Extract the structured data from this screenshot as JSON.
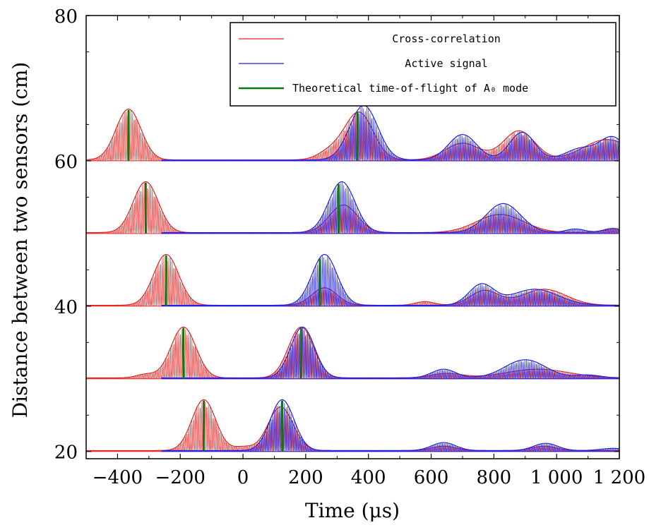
{
  "chart_data": {
    "type": "line",
    "title": "",
    "xlabel": "Time (μs)",
    "ylabel": "Distance between two sensors (cm)",
    "xlim": [
      -500,
      1200
    ],
    "ylim": [
      19,
      80
    ],
    "xticks": [
      -400,
      -200,
      0,
      200,
      400,
      600,
      800,
      1000,
      1200
    ],
    "xtick_labels": [
      "−400",
      "−200",
      "0",
      "200",
      "400",
      "600",
      "800",
      "1 000",
      "1 200"
    ],
    "yticks": [
      20,
      40,
      60,
      80
    ],
    "ytick_labels": [
      "20",
      "40",
      "60",
      "80"
    ],
    "grid": false,
    "legend_position": "top-right",
    "colors": {
      "cross": "#e8211e",
      "active": "#1f1fe6",
      "theory": "#0a7a0a"
    },
    "series": [
      {
        "name": "Cross-correlation",
        "style": "oscillating-envelope"
      },
      {
        "name": "Active signal",
        "style": "oscillating-envelope"
      },
      {
        "name": "Theoretical time-of-flight of A₀ mode",
        "style": "vertical-markers"
      }
    ],
    "traces": [
      {
        "distance": 20,
        "theory_tof": [
          -125,
          125
        ],
        "cross_peaks": [
          {
            "t": -125,
            "a": 7,
            "w": 38
          },
          {
            "t": 0,
            "a": 0.5,
            "w": 30
          },
          {
            "t": 120,
            "a": 6,
            "w": 40
          },
          {
            "t": 640,
            "a": 0.6,
            "w": 40
          },
          {
            "t": 960,
            "a": 0.6,
            "w": 40
          }
        ],
        "active_peaks": [
          {
            "t": 125,
            "a": 7,
            "w": 38
          },
          {
            "t": 640,
            "a": 1.1,
            "w": 38
          },
          {
            "t": 965,
            "a": 1.0,
            "w": 38
          },
          {
            "t": 1180,
            "a": 0.3,
            "w": 40
          }
        ]
      },
      {
        "distance": 30,
        "theory_tof": [
          -190,
          185
        ],
        "cross_peaks": [
          {
            "t": -190,
            "a": 7,
            "w": 40
          },
          {
            "t": -310,
            "a": 0.5,
            "w": 30
          },
          {
            "t": 185,
            "a": 7,
            "w": 40
          },
          {
            "t": 650,
            "a": 0.6,
            "w": 50
          },
          {
            "t": 940,
            "a": 1.2,
            "w": 100
          }
        ],
        "active_peaks": [
          {
            "t": 190,
            "a": 7,
            "w": 38
          },
          {
            "t": 640,
            "a": 1.2,
            "w": 38
          },
          {
            "t": 900,
            "a": 2.5,
            "w": 65
          },
          {
            "t": 1100,
            "a": 0.4,
            "w": 40
          }
        ]
      },
      {
        "distance": 40,
        "theory_tof": [
          -245,
          245
        ],
        "cross_peaks": [
          {
            "t": -245,
            "a": 7,
            "w": 40
          },
          {
            "t": 260,
            "a": 2.4,
            "w": 40
          },
          {
            "t": 580,
            "a": 0.5,
            "w": 30
          },
          {
            "t": 770,
            "a": 2,
            "w": 45
          },
          {
            "t": 960,
            "a": 2.2,
            "w": 70
          }
        ],
        "active_peaks": [
          {
            "t": 260,
            "a": 7,
            "w": 40
          },
          {
            "t": 760,
            "a": 2.8,
            "w": 40
          },
          {
            "t": 930,
            "a": 2.2,
            "w": 75
          }
        ]
      },
      {
        "distance": 50,
        "theory_tof": [
          -310,
          305
        ],
        "cross_peaks": [
          {
            "t": -310,
            "a": 7,
            "w": 40
          },
          {
            "t": 320,
            "a": 3.8,
            "w": 45
          },
          {
            "t": 820,
            "a": 2.5,
            "w": 75
          },
          {
            "t": 1180,
            "a": 0.4,
            "w": 40
          }
        ],
        "active_peaks": [
          {
            "t": 315,
            "a": 7,
            "w": 42
          },
          {
            "t": 830,
            "a": 4,
            "w": 55
          },
          {
            "t": 1060,
            "a": 0.5,
            "w": 30
          },
          {
            "t": 1180,
            "a": 0.6,
            "w": 30
          }
        ]
      },
      {
        "distance": 60,
        "theory_tof": [
          -365,
          365
        ],
        "cross_peaks": [
          {
            "t": -365,
            "a": 7,
            "w": 40
          },
          {
            "t": 370,
            "a": 6.5,
            "w": 45
          },
          {
            "t": 280,
            "a": 1.2,
            "w": 40
          },
          {
            "t": 700,
            "a": 2.3,
            "w": 55
          },
          {
            "t": 880,
            "a": 4,
            "w": 50
          },
          {
            "t": 1160,
            "a": 2.8,
            "w": 75
          }
        ],
        "active_peaks": [
          {
            "t": 385,
            "a": 7.5,
            "w": 45
          },
          {
            "t": 700,
            "a": 3.5,
            "w": 45
          },
          {
            "t": 890,
            "a": 3.8,
            "w": 40
          },
          {
            "t": 1080,
            "a": 1.6,
            "w": 50
          },
          {
            "t": 1180,
            "a": 3,
            "w": 40
          }
        ]
      }
    ]
  }
}
